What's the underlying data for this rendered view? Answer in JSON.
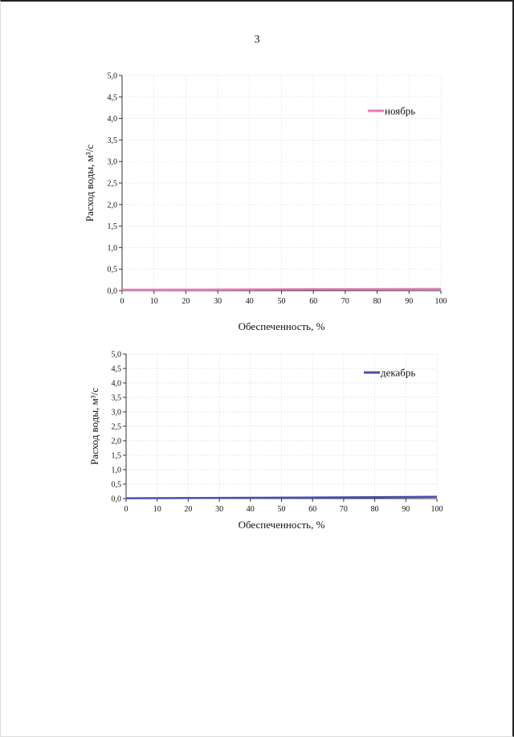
{
  "page": {
    "number": "3"
  },
  "colors": {
    "series1": "#e67ab9",
    "series2": "#4a4fb3",
    "grid": "#e0e0e0",
    "axis": "#333333"
  },
  "chart_data": [
    {
      "type": "line",
      "title": "",
      "xlabel": "Обеспеченность, %",
      "ylabel": "Расход воды, м³/с",
      "xlim": [
        0,
        100
      ],
      "ylim": [
        0,
        5.0
      ],
      "xticks": [
        "0",
        "10",
        "20",
        "30",
        "40",
        "50",
        "60",
        "70",
        "80",
        "90",
        "100"
      ],
      "yticks": [
        "0,0",
        "0,5",
        "1,0",
        "1,5",
        "2,0",
        "2,5",
        "3,0",
        "3,5",
        "4,0",
        "4,5",
        "5,0"
      ],
      "grid": true,
      "legend": "top-right",
      "series": [
        {
          "name": "ноябрь",
          "x": [
            0,
            25,
            50,
            75,
            100
          ],
          "y": [
            0.02,
            0.025,
            0.03,
            0.035,
            0.04
          ]
        }
      ]
    },
    {
      "type": "line",
      "title": "",
      "xlabel": "Обеспеченность, %",
      "ylabel": "Расход воды, м³/с",
      "xlim": [
        0,
        100
      ],
      "ylim": [
        0,
        5.0
      ],
      "xticks": [
        "0",
        "10",
        "20",
        "30",
        "40",
        "50",
        "60",
        "70",
        "80",
        "90",
        "100"
      ],
      "yticks": [
        "0,0",
        "0,5",
        "1,0",
        "1,5",
        "2,0",
        "2,5",
        "3,0",
        "3,5",
        "4,0",
        "4,5",
        "5,0"
      ],
      "grid": true,
      "legend": "top-right",
      "series": [
        {
          "name": "декабрь",
          "x": [
            0,
            25,
            50,
            75,
            100
          ],
          "y": [
            0.01,
            0.02,
            0.03,
            0.045,
            0.06
          ]
        }
      ]
    }
  ]
}
